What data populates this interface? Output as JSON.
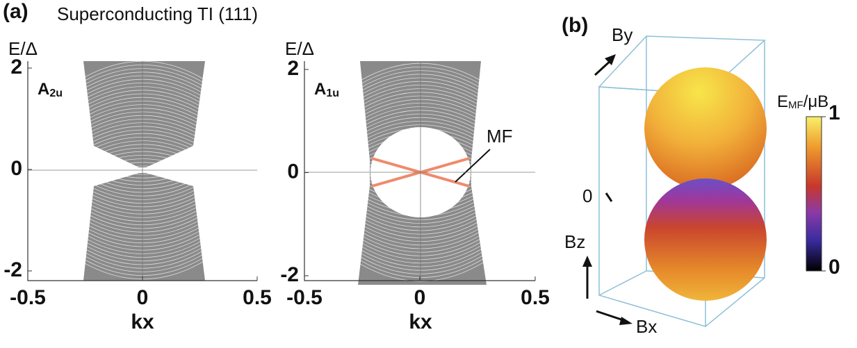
{
  "panel_a": {
    "label": "(a)",
    "title": "Superconducting TI  (111)",
    "mf_label": "MF",
    "plots": [
      {
        "ylabel": "E/Δ",
        "symmetry": {
          "base": "A",
          "sub": "2u"
        },
        "xlabel": "kx",
        "xticks": [
          -0.5,
          0,
          0.5
        ],
        "yticks": [
          -2,
          0,
          2
        ]
      },
      {
        "ylabel": "E/Δ",
        "symmetry": {
          "base": "A",
          "sub": "1u"
        },
        "xlabel": "kx",
        "xticks": [
          -0.5,
          0,
          0.5
        ],
        "yticks": [
          -2,
          0,
          2
        ]
      }
    ]
  },
  "panel_b": {
    "label": "(b)",
    "axis_y": "By",
    "axis_z": "Bz",
    "axis_x": "Bx",
    "zero_tick": "0",
    "colorbar": {
      "label": {
        "base": "E",
        "sub": "MF",
        "rest": "/μB"
      },
      "ticks": [
        0,
        1
      ]
    }
  }
}
